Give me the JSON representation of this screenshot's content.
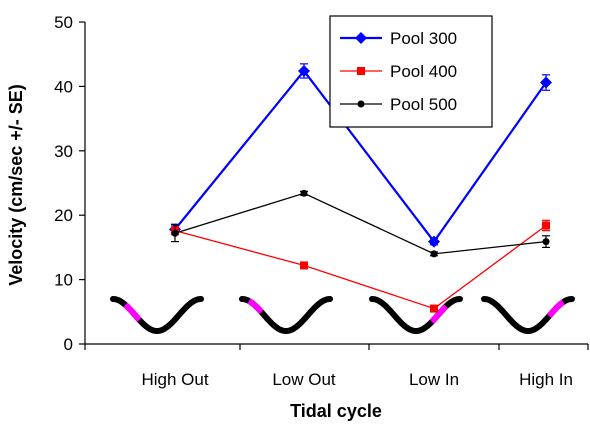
{
  "chart_data": {
    "type": "line",
    "title": "",
    "xlabel": "Tidal cycle",
    "ylabel": "Velocity (cm/sec +/- SE)",
    "ylim": [
      0,
      50
    ],
    "yticks": [
      0,
      10,
      20,
      30,
      40,
      50
    ],
    "categories": [
      "High Out",
      "Low Out",
      "Low In",
      "High In"
    ],
    "grid": false,
    "legend_position": "top-right",
    "series": [
      {
        "name": "Pool 300",
        "color": "#0000ff",
        "marker": "diamond",
        "values": [
          17.8,
          42.4,
          15.9,
          40.6
        ],
        "errors": [
          0.8,
          1.1,
          0.5,
          1.2
        ]
      },
      {
        "name": "Pool 400",
        "color": "#ff0000",
        "marker": "square",
        "values": [
          17.6,
          12.2,
          5.5,
          18.4
        ],
        "errors": [
          0.6,
          0.4,
          0.3,
          0.8
        ]
      },
      {
        "name": "Pool 500",
        "color": "#000000",
        "marker": "circle",
        "values": [
          17.2,
          23.4,
          14.0,
          15.9
        ],
        "errors": [
          1.3,
          0.3,
          0.3,
          0.9
        ]
      }
    ],
    "tide_icons": {
      "wave_color": "#000000",
      "highlight_color": "#ff00ff",
      "highlight_phase": [
        "descending-right",
        "descending-left",
        "ascending-left",
        "ascending-right"
      ]
    }
  }
}
